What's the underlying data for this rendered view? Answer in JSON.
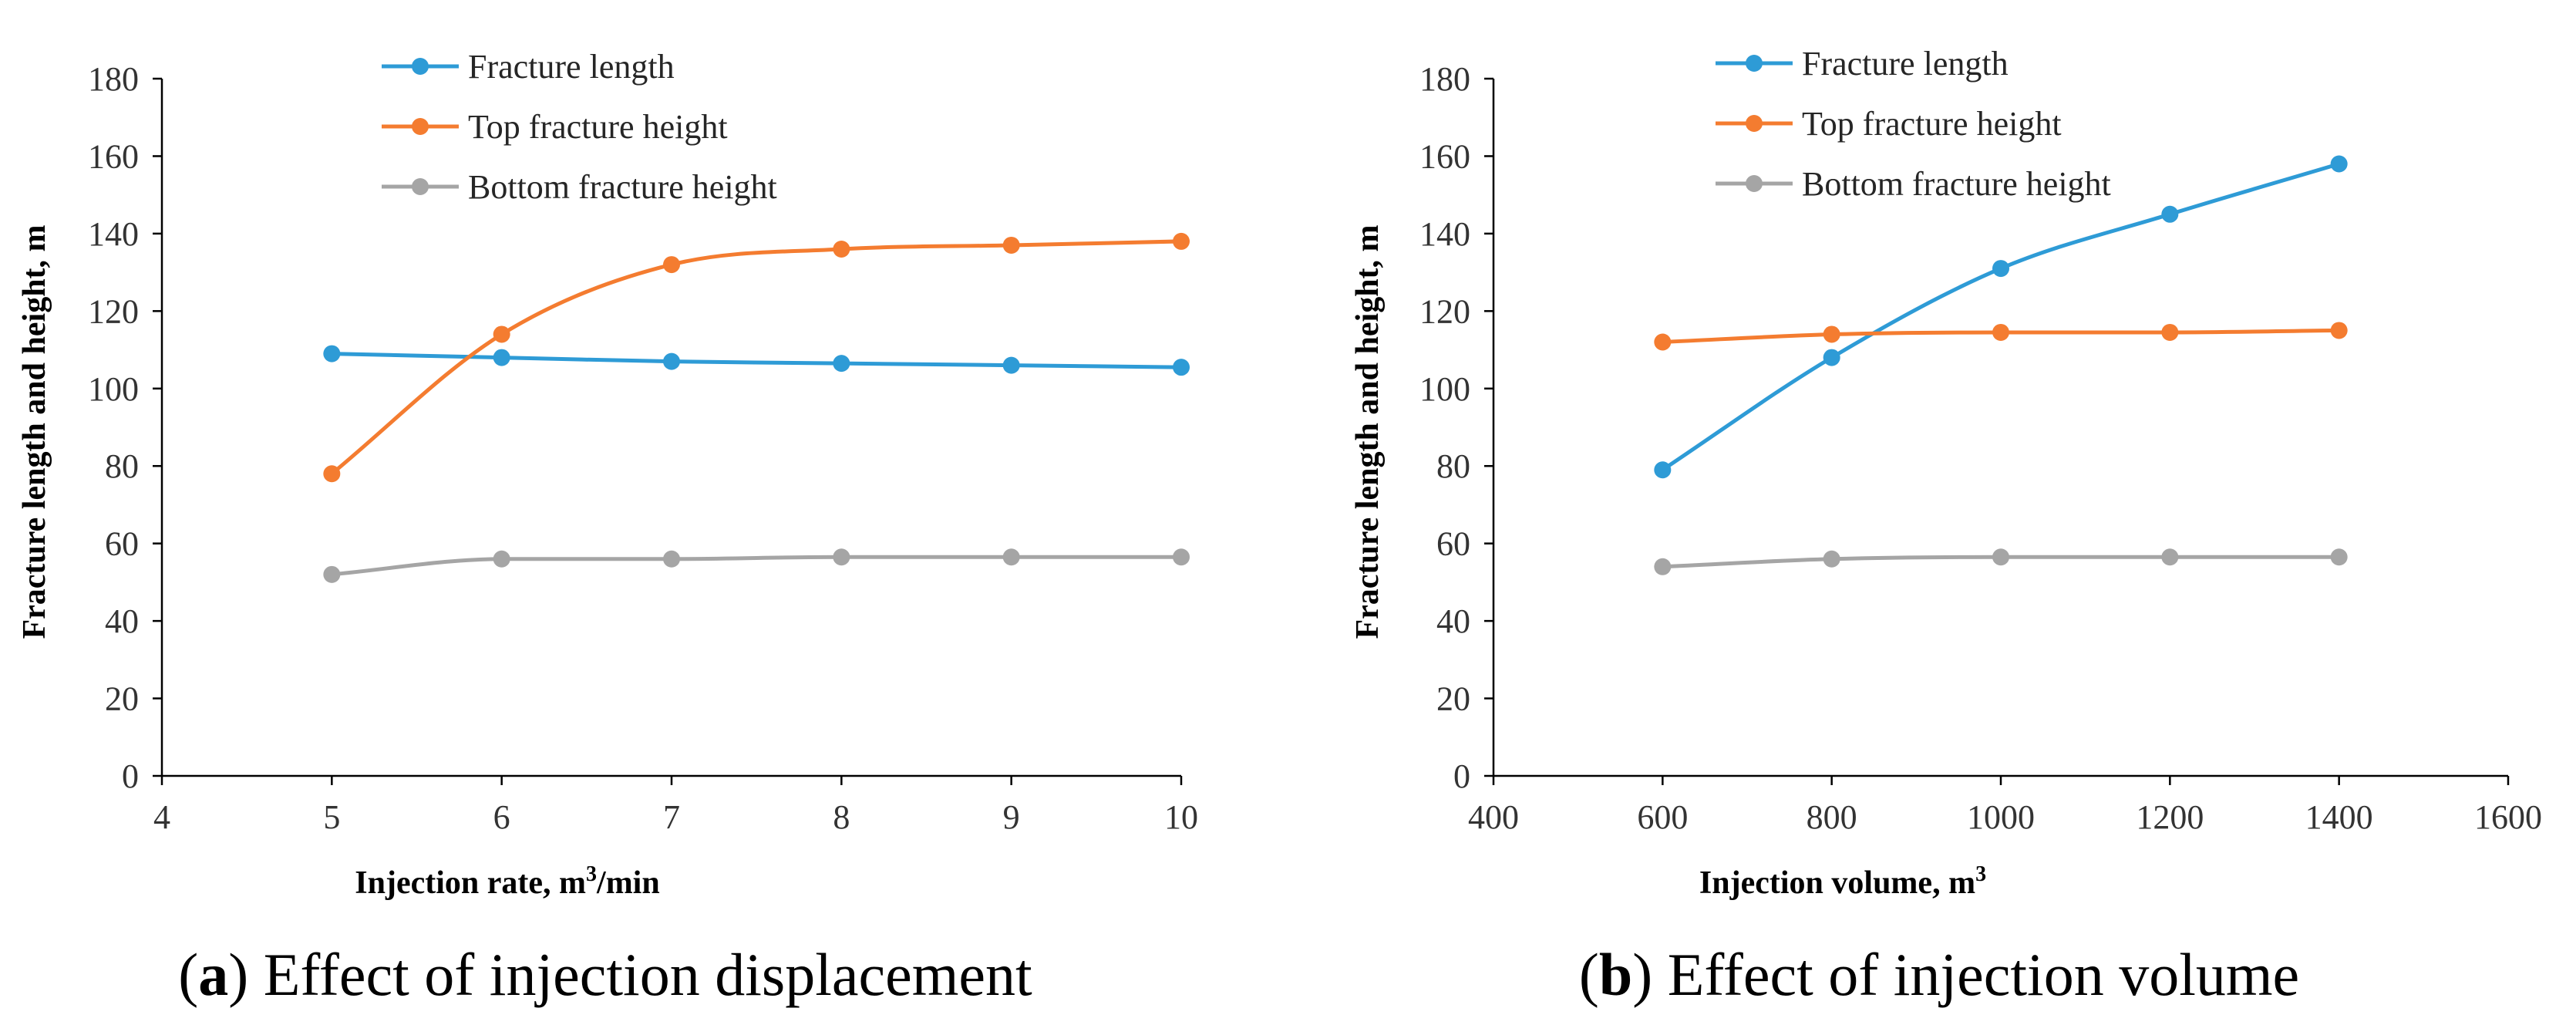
{
  "charts": [
    {
      "caption_letter": "a",
      "caption_rest": ") Effect of injection displacement",
      "legend": [
        "Fracture length",
        "Top fracture height",
        "Bottom fracture height"
      ],
      "xlabel_pre": "Injection rate, m",
      "xlabel_sup": "3",
      "xlabel_post": "/min",
      "ylabel": "Fracture length and height, m"
    },
    {
      "caption_letter": "b",
      "caption_rest": ") Effect of injection volume",
      "legend": [
        "Fracture length",
        "Top fracture height",
        "Bottom fracture height"
      ],
      "xlabel_pre": "Injection volume, m",
      "xlabel_sup": "3",
      "xlabel_post": "",
      "ylabel": "Fracture length and height, m"
    }
  ],
  "chart_data": [
    {
      "type": "line",
      "title": "(a) Effect of injection displacement",
      "xlabel": "Injection rate, m³/min",
      "ylabel": "Fracture length and height, m",
      "xlim": [
        4,
        10
      ],
      "ylim": [
        0,
        180
      ],
      "xticks": [
        4,
        5,
        6,
        7,
        8,
        9,
        10
      ],
      "yticks": [
        0,
        20,
        40,
        60,
        80,
        100,
        120,
        140,
        160,
        180
      ],
      "legend_position": "top-center",
      "x": [
        5,
        6,
        7,
        8,
        9,
        10
      ],
      "series": [
        {
          "name": "Fracture length",
          "color": "#2E9BD6",
          "values": [
            109,
            108,
            107,
            106.5,
            106,
            105.5
          ]
        },
        {
          "name": "Top fracture height",
          "color": "#F47C30",
          "values": [
            78,
            114,
            132,
            136,
            137,
            138
          ]
        },
        {
          "name": "Bottom fracture height",
          "color": "#A5A5A5",
          "values": [
            52,
            56,
            56,
            56.5,
            56.5,
            56.5
          ]
        }
      ]
    },
    {
      "type": "line",
      "title": "(b) Effect of injection volume",
      "xlabel": "Injection volume, m³",
      "ylabel": "Fracture length and height, m",
      "xlim": [
        400,
        1600
      ],
      "ylim": [
        0,
        180
      ],
      "xticks": [
        400,
        600,
        800,
        1000,
        1200,
        1400,
        1600
      ],
      "yticks": [
        0,
        20,
        40,
        60,
        80,
        100,
        120,
        140,
        160,
        180
      ],
      "legend_position": "top-center",
      "x": [
        600,
        800,
        1000,
        1200,
        1400
      ],
      "series": [
        {
          "name": "Fracture length",
          "color": "#2E9BD6",
          "values": [
            79,
            108,
            131,
            145,
            158
          ]
        },
        {
          "name": "Top fracture height",
          "color": "#F47C30",
          "values": [
            112,
            114,
            114.5,
            114.5,
            115
          ]
        },
        {
          "name": "Bottom fracture height",
          "color": "#A5A5A5",
          "values": [
            54,
            56,
            56.5,
            56.5,
            56.5
          ]
        }
      ]
    }
  ]
}
